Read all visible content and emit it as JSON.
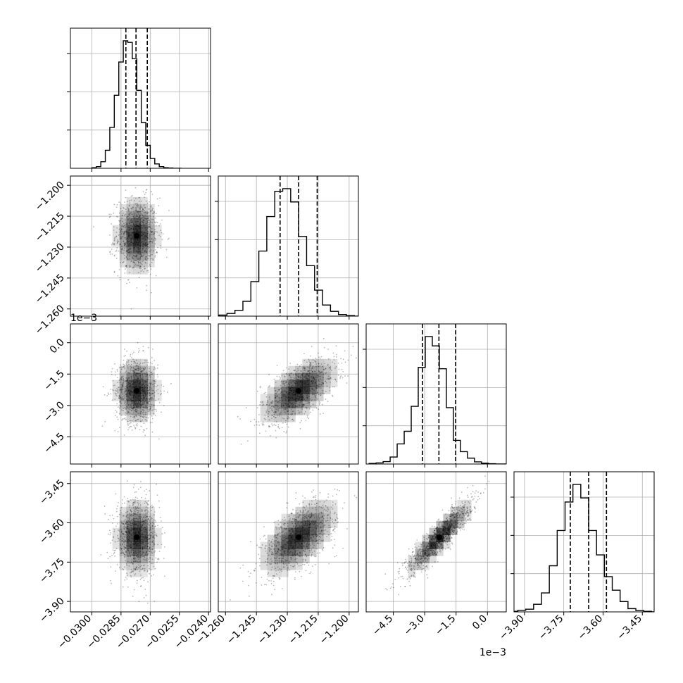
{
  "chart_data": {
    "type": "corner",
    "variables": [
      {
        "key": "p0",
        "range": [
          -0.0311,
          -0.0239
        ],
        "ticks": [
          -0.03,
          -0.0285,
          -0.027,
          -0.0255,
          -0.024
        ],
        "tick_labels": [
          "−0.0300",
          "−0.0285",
          "−0.0270",
          "−0.0255",
          "−0.0240"
        ],
        "offset_label": "",
        "mean": -0.02769,
        "sd": 0.00055,
        "quantiles": [
          -0.02825,
          -0.02773,
          -0.02715
        ]
      },
      {
        "key": "p1",
        "range": [
          -1.2635,
          -1.1955
        ],
        "ticks": [
          -1.26,
          -1.245,
          -1.23,
          -1.215,
          -1.2
        ],
        "tick_labels": [
          "−1.260",
          "−1.245",
          "−1.230",
          "−1.215",
          "−1.200"
        ],
        "offset_label": "",
        "mean": -1.2245,
        "sd": 0.0092,
        "quantiles": [
          -1.2335,
          -1.2245,
          -1.2155
        ]
      },
      {
        "key": "p2",
        "range": [
          -5.8,
          0.9
        ],
        "ticks": [
          -4.5,
          -3.0,
          -1.5,
          0.0
        ],
        "tick_labels": [
          "−4.5",
          "−3.0",
          "−1.5",
          "0.0"
        ],
        "offset_label": "1e−3",
        "mean": -2.3,
        "sd": 0.8,
        "quantiles": [
          -3.1,
          -2.32,
          -1.52
        ]
      },
      {
        "key": "p3",
        "range": [
          -3.94,
          -3.405
        ],
        "ticks": [
          -3.9,
          -3.75,
          -3.6,
          -3.45
        ],
        "tick_labels": [
          "−3.90",
          "−3.75",
          "−3.60",
          "−3.45"
        ],
        "offset_label": "",
        "mean": -3.655,
        "sd": 0.0715,
        "quantiles": [
          -3.725,
          -3.655,
          -3.587
        ]
      }
    ],
    "histograms": [
      {
        "var": 0,
        "bins": 20,
        "counts": [
          2,
          6,
          24,
          66,
          150,
          268,
          390,
          468,
          462,
          402,
          286,
          168,
          84,
          36,
          16,
          6,
          2,
          1,
          0,
          0
        ]
      },
      {
        "var": 1,
        "bins": 20,
        "counts": [
          4,
          10,
          22,
          56,
          130,
          245,
          375,
          470,
          480,
          430,
          300,
          190,
          98,
          42,
          18,
          6,
          2,
          0,
          0,
          0
        ]
      },
      {
        "var": 2,
        "bins": 20,
        "counts": [
          2,
          4,
          9,
          26,
          75,
          122,
          215,
          360,
          475,
          440,
          355,
          210,
          88,
          46,
          22,
          8,
          3,
          1,
          0,
          0
        ]
      },
      {
        "var": 3,
        "bins": 20,
        "counts": [
          2,
          6,
          10,
          28,
          70,
          170,
          300,
          405,
          470,
          420,
          300,
          210,
          130,
          80,
          38,
          12,
          5,
          2,
          0,
          0
        ]
      }
    ],
    "pairs": [
      {
        "x": 0,
        "y": 1,
        "correlation": 0.0
      },
      {
        "x": 0,
        "y": 2,
        "correlation": 0.0
      },
      {
        "x": 1,
        "y": 2,
        "correlation": 0.6
      },
      {
        "x": 0,
        "y": 3,
        "correlation": 0.0
      },
      {
        "x": 1,
        "y": 3,
        "correlation": 0.6
      },
      {
        "x": 2,
        "y": 3,
        "correlation": 0.9
      }
    ],
    "contour_levels_sigma": [
      0.5,
      1.0,
      1.5,
      2.0
    ],
    "grid": true,
    "colors": {
      "axes": "#000000",
      "grid": "#b0b0b0",
      "points": "#000000",
      "density": "#000000",
      "contour_fill": "#ffffff"
    }
  }
}
